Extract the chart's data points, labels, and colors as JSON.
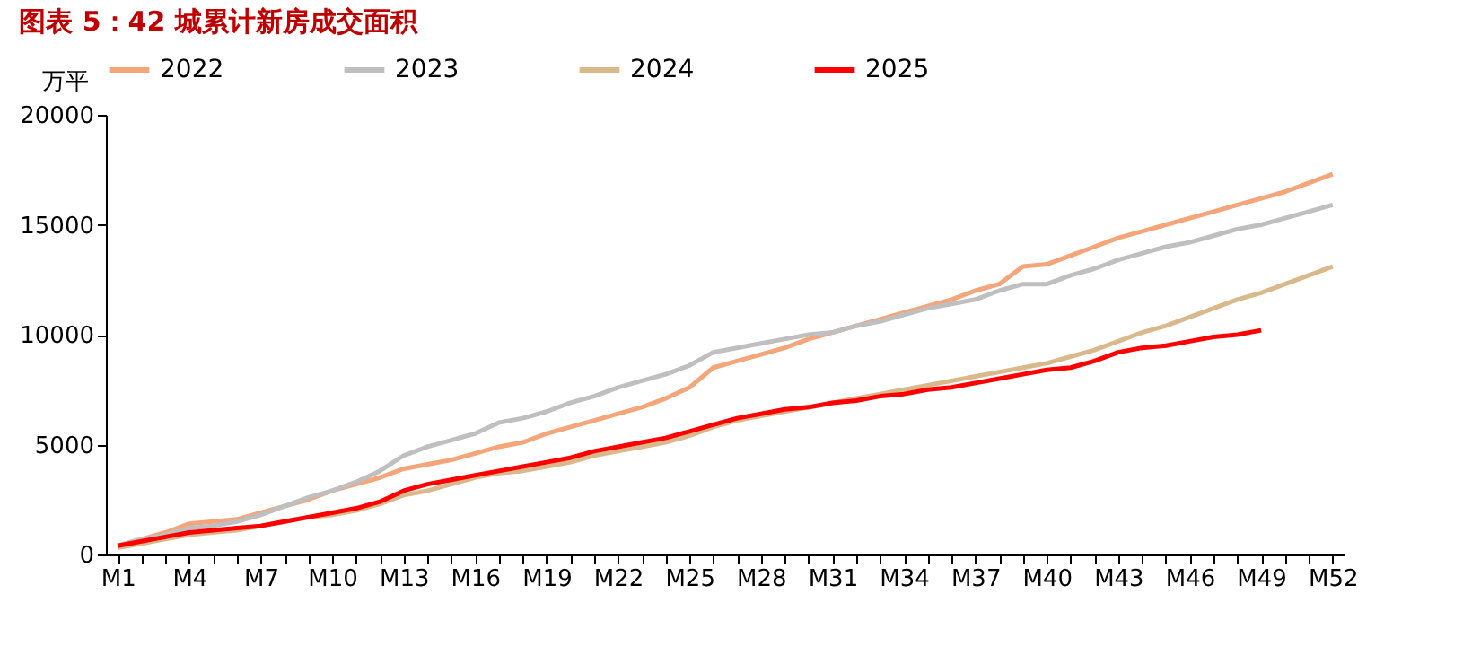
{
  "chart_data": {
    "type": "line",
    "title": "图表 5：42 城累计新房成交面积",
    "ylabel": "万平",
    "categories": [
      "M1",
      null,
      null,
      "M4",
      null,
      null,
      "M7",
      null,
      null,
      "M10",
      null,
      null,
      "M13",
      null,
      null,
      "M16",
      null,
      null,
      "M19",
      null,
      null,
      "M22",
      null,
      null,
      "M25",
      null,
      null,
      "M28",
      null,
      null,
      "M31",
      null,
      null,
      "M34",
      null,
      null,
      "M37",
      null,
      null,
      "M40",
      null,
      null,
      "M43",
      null,
      null,
      "M46",
      null,
      null,
      "M49",
      null,
      null,
      "M52"
    ],
    "series": [
      {
        "name": "2022",
        "color": "#f4a57a",
        "values": [
          400,
          700,
          1000,
          1400,
          1500,
          1600,
          1900,
          2200,
          2500,
          2900,
          3200,
          3500,
          3900,
          4100,
          4300,
          4600,
          4900,
          5100,
          5500,
          5800,
          6100,
          6400,
          6700,
          7100,
          7600,
          8500,
          8800,
          9100,
          9400,
          9800,
          10100,
          10400,
          10700,
          11000,
          11300,
          11600,
          12000,
          12300,
          13100,
          13200,
          13600,
          14000,
          14400,
          14700,
          15000,
          15300,
          15600,
          15900,
          16200,
          16500,
          16900,
          17300
        ]
      },
      {
        "name": "2023",
        "color": "#bfbfbf",
        "values": [
          400,
          700,
          900,
          1200,
          1300,
          1500,
          1800,
          2200,
          2600,
          2900,
          3300,
          3800,
          4500,
          4900,
          5200,
          5500,
          6000,
          6200,
          6500,
          6900,
          7200,
          7600,
          7900,
          8200,
          8600,
          9200,
          9400,
          9600,
          9800,
          10000,
          10100,
          10400,
          10600,
          10900,
          11200,
          11400,
          11600,
          12000,
          12300,
          12300,
          12700,
          13000,
          13400,
          13700,
          14000,
          14200,
          14500,
          14800,
          15000,
          15300,
          15600,
          15900
        ]
      },
      {
        "name": "2024",
        "color": "#d9b98c",
        "values": [
          300,
          500,
          700,
          900,
          1000,
          1100,
          1300,
          1500,
          1700,
          1800,
          2000,
          2300,
          2700,
          2900,
          3200,
          3500,
          3700,
          3800,
          4000,
          4200,
          4500,
          4700,
          4900,
          5100,
          5400,
          5800,
          6100,
          6300,
          6500,
          6700,
          6900,
          7100,
          7300,
          7500,
          7700,
          7900,
          8100,
          8300,
          8500,
          8700,
          9000,
          9300,
          9700,
          10100,
          10400,
          10800,
          11200,
          11600,
          11900,
          12300,
          12700,
          13100
        ]
      },
      {
        "name": "2025",
        "color": "#ff0000",
        "values": [
          400,
          600,
          800,
          1000,
          1100,
          1200,
          1300,
          1500,
          1700,
          1900,
          2100,
          2400,
          2900,
          3200,
          3400,
          3600,
          3800,
          4000,
          4200,
          4400,
          4700,
          4900,
          5100,
          5300,
          5600,
          5900,
          6200,
          6400,
          6600,
          6700,
          6900,
          7000,
          7200,
          7300,
          7500,
          7600,
          7800,
          8000,
          8200,
          8400,
          8500,
          8800,
          9200,
          9400,
          9500,
          9700,
          9900,
          10000,
          10200,
          null,
          null,
          null
        ]
      }
    ],
    "ylim": [
      0,
      20000
    ],
    "yticks": [
      0,
      5000,
      10000,
      15000,
      20000
    ],
    "grid": false,
    "legend": "top",
    "line_style": "solid",
    "marker": "none"
  }
}
